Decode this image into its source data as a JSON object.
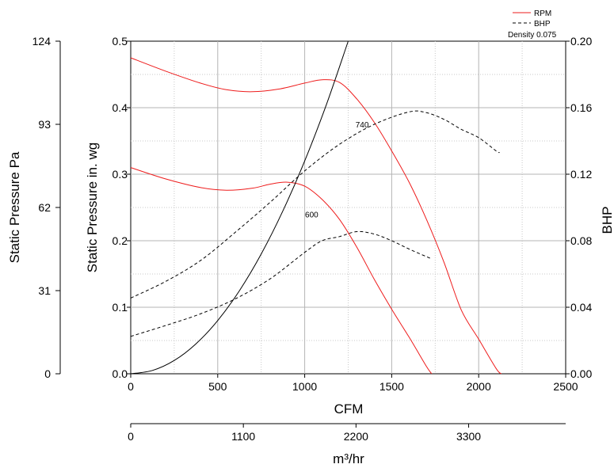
{
  "chart_data": {
    "type": "line",
    "title": "",
    "xlabel": "CFM",
    "x2label": "m³/hr",
    "ylabel": "Static Pressure in. wg",
    "y_pa_label": "Static Pressure Pa",
    "y2label": "BHP",
    "xlim": [
      0,
      2500
    ],
    "ylim": [
      0,
      0.5
    ],
    "y2lim": [
      0,
      0.2
    ],
    "x_ticks": [
      "0",
      "500",
      "1000",
      "1500",
      "2000",
      "2500"
    ],
    "x2_ticks": [
      "0",
      "1100",
      "2200",
      "3300"
    ],
    "y_ticks": [
      "0.0",
      "0.1",
      "0.2",
      "0.3",
      "0.4",
      "0.5"
    ],
    "y2_ticks": [
      "0.00",
      "0.04",
      "0.08",
      "0.12",
      "0.16",
      "0.20"
    ],
    "y_pa_ticks": [
      "0",
      "31",
      "62",
      "93",
      "124"
    ],
    "legend": {
      "position": "top-right",
      "rpm": "RPM",
      "bhp": "BHP",
      "density": "Density 0.075"
    },
    "grid": true,
    "colors": {
      "rpm": "#ee1c1c",
      "bhp": "#000000",
      "system": "#000000"
    },
    "series": [
      {
        "name": "RPM",
        "label": "740",
        "kind": "rpm",
        "label_at": [
          1330,
          0.37
        ],
        "points": [
          [
            0,
            0.475
          ],
          [
            200,
            0.455
          ],
          [
            400,
            0.437
          ],
          [
            550,
            0.427
          ],
          [
            700,
            0.424
          ],
          [
            850,
            0.428
          ],
          [
            1000,
            0.437
          ],
          [
            1100,
            0.442
          ],
          [
            1200,
            0.438
          ],
          [
            1300,
            0.413
          ],
          [
            1400,
            0.378
          ],
          [
            1500,
            0.335
          ],
          [
            1600,
            0.288
          ],
          [
            1700,
            0.232
          ],
          [
            1800,
            0.168
          ],
          [
            1900,
            0.096
          ],
          [
            2000,
            0.052
          ],
          [
            2100,
            0.008
          ],
          [
            2130,
            0.0
          ]
        ]
      },
      {
        "name": "RPM",
        "label": "600",
        "kind": "rpm",
        "label_at": [
          1040,
          0.235
        ],
        "points": [
          [
            0,
            0.31
          ],
          [
            200,
            0.293
          ],
          [
            400,
            0.28
          ],
          [
            550,
            0.276
          ],
          [
            700,
            0.279
          ],
          [
            800,
            0.285
          ],
          [
            900,
            0.288
          ],
          [
            1000,
            0.282
          ],
          [
            1100,
            0.262
          ],
          [
            1200,
            0.232
          ],
          [
            1300,
            0.19
          ],
          [
            1400,
            0.142
          ],
          [
            1500,
            0.097
          ],
          [
            1600,
            0.055
          ],
          [
            1700,
            0.011
          ],
          [
            1730,
            0.0
          ]
        ]
      },
      {
        "name": "BHP",
        "label": "",
        "kind": "bhp",
        "points": [
          [
            0,
            0.0455
          ],
          [
            200,
            0.0555
          ],
          [
            400,
            0.068
          ],
          [
            600,
            0.085
          ],
          [
            800,
            0.103
          ],
          [
            1000,
            0.122
          ],
          [
            1200,
            0.138
          ],
          [
            1400,
            0.15
          ],
          [
            1600,
            0.1575
          ],
          [
            1700,
            0.157
          ],
          [
            1800,
            0.153
          ],
          [
            1900,
            0.147
          ],
          [
            2000,
            0.142
          ],
          [
            2100,
            0.134
          ],
          [
            2120,
            0.133
          ]
        ]
      },
      {
        "name": "BHP",
        "label": "",
        "kind": "bhp",
        "points": [
          [
            0,
            0.0225
          ],
          [
            200,
            0.029
          ],
          [
            400,
            0.036
          ],
          [
            600,
            0.045
          ],
          [
            800,
            0.057
          ],
          [
            1000,
            0.073
          ],
          [
            1100,
            0.08
          ],
          [
            1200,
            0.0825
          ],
          [
            1300,
            0.0855
          ],
          [
            1400,
            0.084
          ],
          [
            1500,
            0.08
          ],
          [
            1600,
            0.075
          ],
          [
            1720,
            0.0695
          ]
        ]
      },
      {
        "name": "System",
        "label": "",
        "kind": "system",
        "points": [
          [
            0,
            0.0
          ],
          [
            125,
            0.005
          ],
          [
            250,
            0.02
          ],
          [
            375,
            0.045
          ],
          [
            500,
            0.08
          ],
          [
            625,
            0.125
          ],
          [
            750,
            0.18
          ],
          [
            875,
            0.245
          ],
          [
            1000,
            0.32
          ],
          [
            1125,
            0.405
          ],
          [
            1250,
            0.5
          ]
        ]
      }
    ]
  }
}
